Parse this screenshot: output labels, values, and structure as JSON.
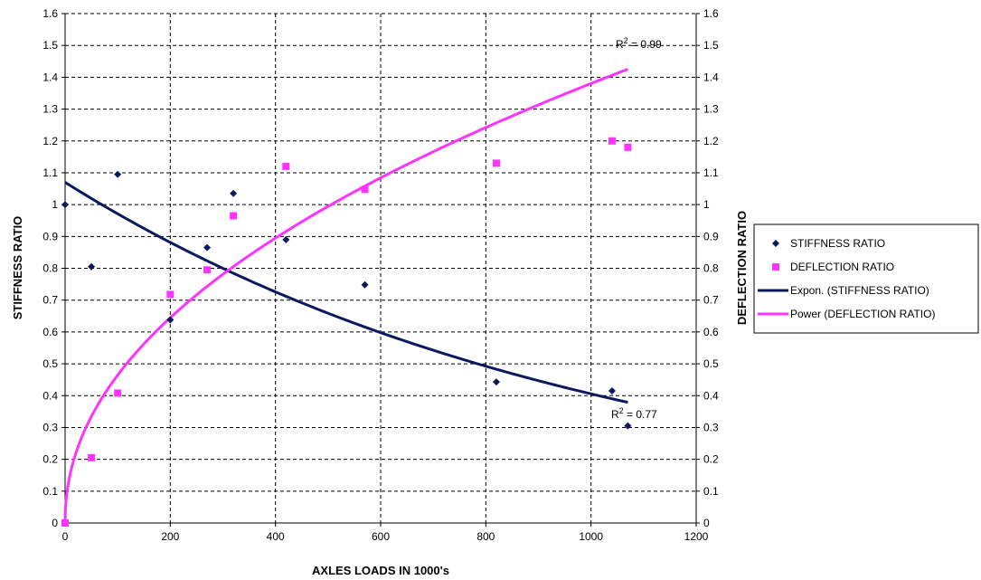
{
  "chart_data": {
    "type": "scatter",
    "title": "",
    "xlabel": "AXLES LOADS  IN 1000's",
    "ylabel": "STIFFNESS RATIO",
    "y2label": "DEFLECTION RATIO",
    "xlim": [
      0,
      1200
    ],
    "ylim": [
      0,
      1.6
    ],
    "y2lim": [
      0,
      1.6
    ],
    "xticks": [
      "0",
      "200",
      "400",
      "600",
      "800",
      "1000",
      "1200"
    ],
    "yticks": [
      "0",
      "0.1",
      "0.2",
      "0.3",
      "0.4",
      "0.5",
      "0.6",
      "0.7",
      "0.8",
      "0.9",
      "1",
      "1.1",
      "1.2",
      "1.3",
      "1.4",
      "1.5",
      "1.6"
    ],
    "grid": true,
    "legend_position": "right",
    "series": [
      {
        "name": "STIFFNESS RATIO",
        "marker": "diamond",
        "color": "#0a1a5c",
        "x": [
          0,
          50,
          100,
          200,
          270,
          320,
          420,
          570,
          820,
          1040,
          1070
        ],
        "y": [
          1.0,
          0.805,
          1.095,
          0.638,
          0.865,
          1.035,
          0.89,
          0.748,
          0.443,
          0.415,
          0.305
        ]
      },
      {
        "name": "DEFLECTION RATIO",
        "marker": "square",
        "color": "#ff33ff",
        "x": [
          0,
          50,
          100,
          200,
          270,
          320,
          420,
          570,
          820,
          1040,
          1070
        ],
        "y": [
          0.0,
          0.205,
          0.408,
          0.718,
          0.795,
          0.965,
          1.12,
          1.048,
          1.13,
          1.2,
          1.18
        ]
      }
    ],
    "trendlines": [
      {
        "name": "Expon. (STIFFNESS RATIO)",
        "kind": "exponential",
        "color": "#0a1a5c",
        "a": 1.07,
        "b": -0.00097,
        "x_range": [
          0,
          1070
        ],
        "r2_label": "R",
        "r2_sup": "2",
        "r2_value": " = 0.77"
      },
      {
        "name": "Power (DEFLECTION RATIO)",
        "kind": "power",
        "color": "#ff33ff",
        "a": 0.0526,
        "b": 0.473,
        "x_range": [
          0.5,
          1070
        ],
        "r2_label": "R",
        "r2_sup": "2",
        "r2_value": " = 0.99"
      }
    ]
  }
}
